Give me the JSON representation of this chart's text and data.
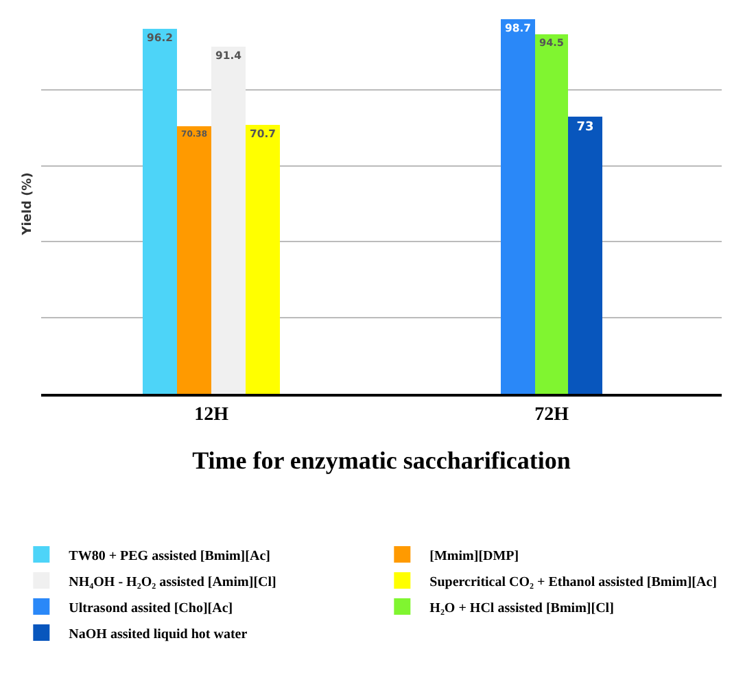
{
  "chart_data": {
    "type": "bar",
    "ylabel": "Yield (%)",
    "xlabel": "Time for enzymatic saccharification",
    "categories": [
      "12H",
      "72H"
    ],
    "series": [
      {
        "name": "TW80 + PEG assisted [Bmim][Ac]",
        "color": "#4dd4f8",
        "values": [
          96.2,
          null
        ]
      },
      {
        "name": "[Mmim][DMP]",
        "color": "#ff9a00",
        "values": [
          70.38,
          null
        ]
      },
      {
        "name": "NH₄OH - H₂O₂ assisted [Amim][Cl]",
        "color": "#f0f0f0",
        "values": [
          91.4,
          null
        ]
      },
      {
        "name": "Supercritical CO₂ + Ethanol assisted [Bmim][Ac]",
        "color": "#ffff00",
        "values": [
          70.7,
          null
        ]
      },
      {
        "name": "Ultrasond assited [Cho][Ac]",
        "color": "#2a88f8",
        "values": [
          null,
          98.7
        ]
      },
      {
        "name": "H₂O + HCl assisted [Bmim][Cl]",
        "color": "#80f530",
        "values": [
          null,
          94.5
        ]
      },
      {
        "name": "NaOH assited liquid hot water",
        "color": "#0856bd",
        "values": [
          null,
          73
        ]
      }
    ],
    "ylim": [
      0,
      100
    ],
    "yticks": [
      {
        "value": 0,
        "label": null
      },
      {
        "value": 20,
        "label": null
      },
      {
        "value": 40,
        "label": null
      },
      {
        "value": 60,
        "label": null
      },
      {
        "value": 80,
        "label": null
      }
    ],
    "grid": "y",
    "legend": "bottom",
    "data_labels": true,
    "tick_labels": "x"
  }
}
